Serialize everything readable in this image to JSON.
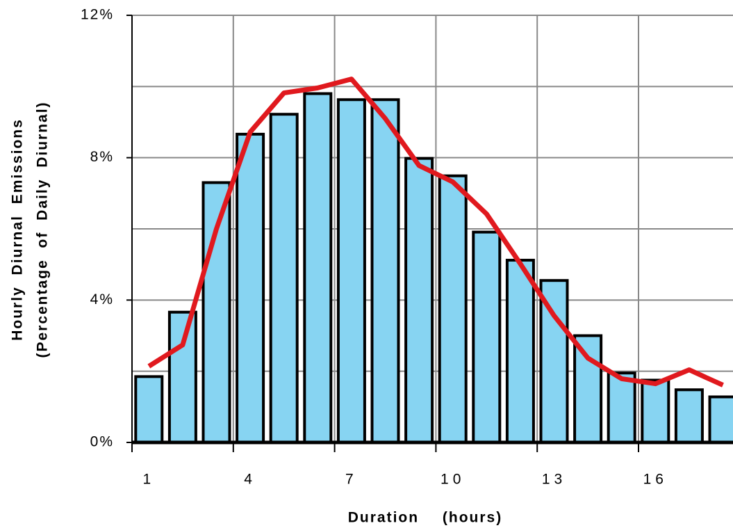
{
  "chart_data": {
    "type": "combo",
    "x_label": "Duration (hours)",
    "y_label": [
      "Hourly Diurnal Emissions",
      "(Percentage of Daily Diurnal)"
    ],
    "categories": [
      "1",
      null,
      null,
      "4",
      null,
      null,
      "7",
      null,
      null,
      "10",
      null,
      null,
      "13",
      null,
      null,
      "16",
      null,
      null
    ],
    "series": [
      {
        "type": "bar",
        "color": "#87d4f2",
        "values": [
          1.85,
          3.66,
          7.3,
          8.66,
          9.22,
          9.8,
          9.63,
          9.63,
          7.98,
          7.49,
          5.91,
          5.12,
          4.55,
          3.0,
          1.95,
          1.75,
          1.48,
          1.28
        ]
      },
      {
        "type": "line",
        "color": "#e0191e",
        "values": [
          2.14,
          2.74,
          6.0,
          8.72,
          9.82,
          9.96,
          10.21,
          9.1,
          7.78,
          7.32,
          6.42,
          5.02,
          3.56,
          2.37,
          1.79,
          1.65,
          2.04,
          1.61
        ]
      }
    ],
    "ylim": [
      0,
      12
    ],
    "yticks": [
      {
        "value": 0,
        "label": "0%"
      },
      {
        "value": 4,
        "label": "4%"
      },
      {
        "value": 8,
        "label": "8%"
      },
      {
        "value": 12,
        "label": "12%"
      }
    ],
    "ygrid": [
      0,
      2,
      4,
      6,
      8,
      10,
      12
    ],
    "grid": true
  }
}
